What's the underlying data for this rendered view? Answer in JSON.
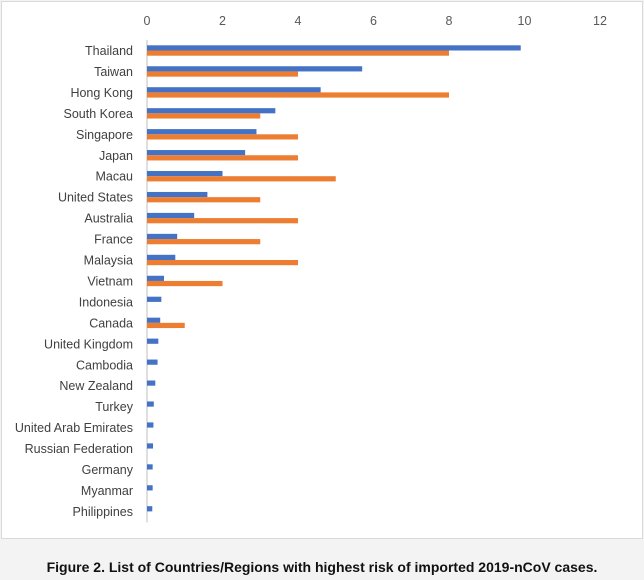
{
  "caption": "Figure 2. List of Countries/Regions with highest risk of imported 2019-nCoV cases.",
  "chart_data": {
    "type": "bar",
    "orientation": "horizontal",
    "categories": [
      "Thailand",
      "Taiwan",
      "Hong Kong",
      "South Korea",
      "Singapore",
      "Japan",
      "Macau",
      "United States",
      "Australia",
      "France",
      "Malaysia",
      "Vietnam",
      "Indonesia",
      "Canada",
      "United Kingdom",
      "Cambodia",
      "New Zealand",
      "Turkey",
      "United Arab Emirates",
      "Russian Federation",
      "Germany",
      "Myanmar",
      "Philippines"
    ],
    "series": [
      {
        "color": "#4472c4",
        "values": [
          9.9,
          5.7,
          4.6,
          3.4,
          2.9,
          2.6,
          2.0,
          1.6,
          1.25,
          0.8,
          0.75,
          0.45,
          0.38,
          0.35,
          0.3,
          0.28,
          0.22,
          0.18,
          0.17,
          0.16,
          0.15,
          0.15,
          0.14
        ]
      },
      {
        "color": "#ed7d31",
        "values": [
          8,
          4,
          8,
          3,
          4,
          4,
          5,
          3,
          4,
          3,
          4,
          2,
          null,
          1,
          null,
          null,
          null,
          null,
          null,
          null,
          null,
          null,
          null
        ]
      }
    ],
    "xlim": [
      0,
      12
    ],
    "xticks": [
      0,
      2,
      4,
      6,
      8,
      10,
      12
    ],
    "xaxis_position": "top",
    "grid": false,
    "legend": "none",
    "title": "",
    "xlabel": "",
    "ylabel": ""
  }
}
